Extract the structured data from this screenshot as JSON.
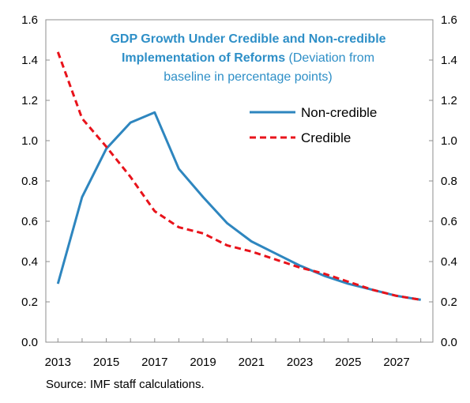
{
  "chart_data": {
    "type": "line",
    "title_bold": "GDP Growth Under Credible and Non-credible Implementation of Reforms",
    "title_bold_lines": [
      "GDP Growth Under Credible and Non-credible",
      "Implementation of Reforms"
    ],
    "title_normal_lines": [
      "(Deviation from",
      "baseline in percentage points)"
    ],
    "xlabel": "",
    "ylabel": "",
    "ylim": [
      0,
      1.6
    ],
    "yticks": [
      "0.0",
      "0.2",
      "0.4",
      "0.6",
      "0.8",
      "1.0",
      "1.2",
      "1.4",
      "1.6"
    ],
    "xlim": [
      2012.5,
      2028.5
    ],
    "xticks": [
      "2013",
      "2015",
      "2017",
      "2019",
      "2021",
      "2023",
      "2025",
      "2027"
    ],
    "grid": false,
    "legend_position": "top-right",
    "x": [
      2013,
      2014,
      2015,
      2016,
      2017,
      2018,
      2019,
      2020,
      2021,
      2022,
      2023,
      2024,
      2025,
      2026,
      2027,
      2028
    ],
    "series": [
      {
        "name": "Non-credible",
        "color": "#2e86bf",
        "dash": "solid",
        "values": [
          0.29,
          0.72,
          0.96,
          1.09,
          1.14,
          0.86,
          0.72,
          0.59,
          0.5,
          0.44,
          0.38,
          0.33,
          0.29,
          0.26,
          0.23,
          0.21
        ]
      },
      {
        "name": "Credible",
        "color": "#e8131b",
        "dash": "dashed",
        "values": [
          1.44,
          1.11,
          0.97,
          0.82,
          0.65,
          0.57,
          0.54,
          0.48,
          0.45,
          0.41,
          0.37,
          0.34,
          0.3,
          0.26,
          0.23,
          0.21
        ]
      }
    ],
    "title_color": "#2e8fc7",
    "axis_color": "#8c8c8c",
    "source": "Source: IMF staff calculations."
  }
}
